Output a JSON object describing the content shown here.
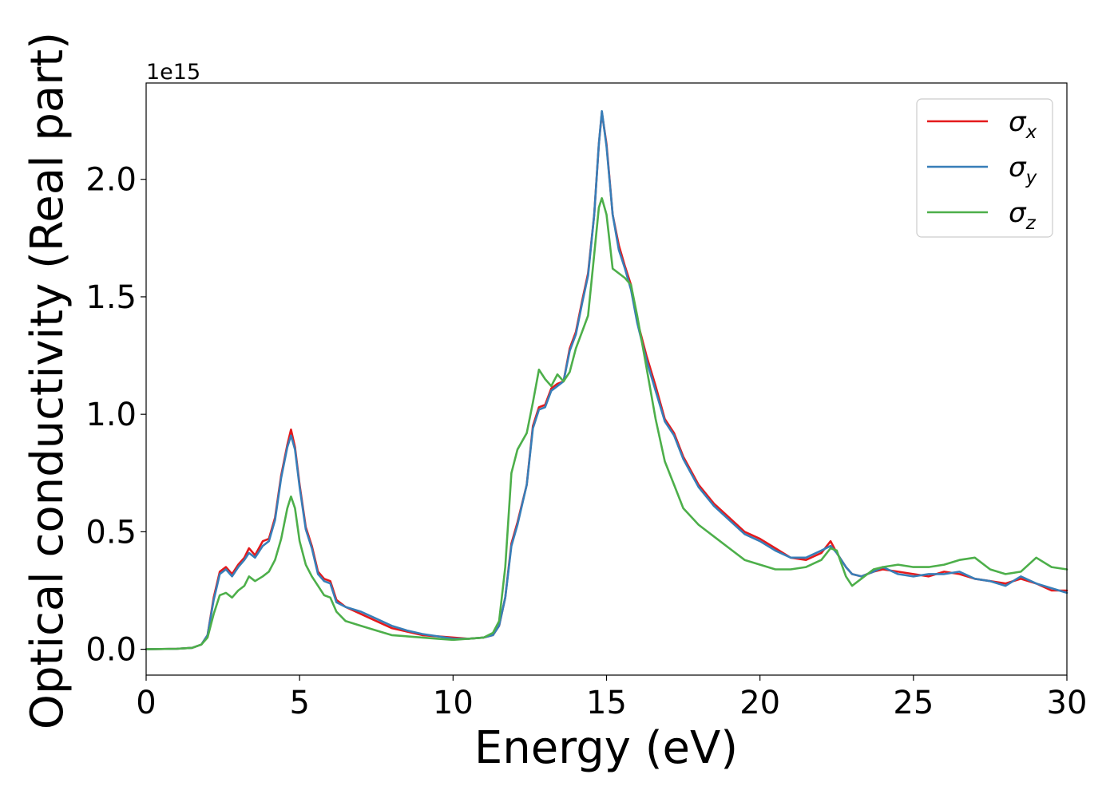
{
  "chart_data": {
    "type": "line",
    "title": "",
    "xlabel": "Energy (eV)",
    "ylabel": "Optical conductivity (Real part)",
    "y_offset_label": "1e15",
    "y_scale": 1000000000000000.0,
    "xlim": [
      0,
      30
    ],
    "ylim": [
      -0.11,
      2.41
    ],
    "xticks": [
      0,
      5,
      10,
      15,
      20,
      25,
      30
    ],
    "xtick_labels": [
      "0",
      "5",
      "10",
      "15",
      "20",
      "25",
      "30"
    ],
    "yticks": [
      0.0,
      0.5,
      1.0,
      1.5,
      2.0
    ],
    "ytick_labels": [
      "0.0",
      "0.5",
      "1.0",
      "1.5",
      "2.0"
    ],
    "grid": false,
    "legend_position": "top-right",
    "series": [
      {
        "name": "σx",
        "legend_symbol": "σ",
        "legend_subscript": "x",
        "color": "#e41a1c",
        "x": [
          0,
          1,
          1.5,
          1.8,
          2.0,
          2.2,
          2.4,
          2.6,
          2.8,
          3.0,
          3.2,
          3.35,
          3.55,
          3.8,
          4.0,
          4.2,
          4.4,
          4.6,
          4.72,
          4.85,
          5.0,
          5.2,
          5.4,
          5.6,
          5.8,
          6.0,
          6.2,
          6.5,
          7.0,
          7.5,
          8.0,
          8.5,
          9.0,
          9.5,
          10.0,
          10.5,
          11.0,
          11.3,
          11.5,
          11.7,
          11.9,
          12.1,
          12.4,
          12.6,
          12.8,
          13.0,
          13.2,
          13.4,
          13.6,
          13.8,
          14.0,
          14.2,
          14.4,
          14.6,
          14.75,
          14.85,
          15.0,
          15.2,
          15.4,
          15.6,
          15.8,
          16.0,
          16.3,
          16.6,
          16.9,
          17.2,
          17.5,
          18.0,
          18.5,
          19.0,
          19.5,
          20.0,
          20.5,
          21.0,
          21.5,
          22.0,
          22.3,
          22.5,
          22.8,
          23.0,
          23.3,
          23.7,
          24.0,
          24.5,
          25.0,
          25.5,
          26.0,
          26.5,
          27.0,
          27.5,
          28.0,
          28.5,
          29.0,
          29.5,
          30.0
        ],
        "values": [
          0,
          0.002,
          0.006,
          0.02,
          0.06,
          0.22,
          0.33,
          0.35,
          0.32,
          0.36,
          0.39,
          0.43,
          0.4,
          0.46,
          0.47,
          0.56,
          0.74,
          0.87,
          0.935,
          0.86,
          0.7,
          0.52,
          0.44,
          0.33,
          0.3,
          0.29,
          0.21,
          0.18,
          0.15,
          0.12,
          0.09,
          0.075,
          0.06,
          0.055,
          0.05,
          0.045,
          0.05,
          0.06,
          0.1,
          0.22,
          0.45,
          0.54,
          0.7,
          0.95,
          1.03,
          1.04,
          1.11,
          1.13,
          1.14,
          1.28,
          1.35,
          1.48,
          1.6,
          1.85,
          2.15,
          2.285,
          2.15,
          1.85,
          1.72,
          1.63,
          1.55,
          1.4,
          1.25,
          1.12,
          0.98,
          0.92,
          0.82,
          0.7,
          0.62,
          0.56,
          0.5,
          0.47,
          0.43,
          0.39,
          0.38,
          0.41,
          0.46,
          0.41,
          0.35,
          0.32,
          0.31,
          0.33,
          0.34,
          0.33,
          0.32,
          0.31,
          0.33,
          0.32,
          0.3,
          0.29,
          0.28,
          0.3,
          0.28,
          0.25,
          0.25
        ]
      },
      {
        "name": "σy",
        "legend_symbol": "σ",
        "legend_subscript": "y",
        "color": "#377eb8",
        "x": [
          0,
          1,
          1.5,
          1.8,
          2.0,
          2.2,
          2.4,
          2.6,
          2.8,
          3.0,
          3.2,
          3.35,
          3.55,
          3.8,
          4.0,
          4.2,
          4.4,
          4.6,
          4.72,
          4.85,
          5.0,
          5.2,
          5.4,
          5.6,
          5.8,
          6.0,
          6.2,
          6.5,
          7.0,
          7.5,
          8.0,
          8.5,
          9.0,
          9.5,
          10.0,
          10.5,
          11.0,
          11.3,
          11.5,
          11.7,
          11.9,
          12.1,
          12.4,
          12.6,
          12.8,
          13.0,
          13.2,
          13.4,
          13.6,
          13.8,
          14.0,
          14.2,
          14.4,
          14.6,
          14.75,
          14.85,
          15.0,
          15.2,
          15.4,
          15.6,
          15.8,
          16.0,
          16.3,
          16.6,
          16.9,
          17.2,
          17.5,
          18.0,
          18.5,
          19.0,
          19.5,
          20.0,
          20.5,
          21.0,
          21.5,
          22.0,
          22.3,
          22.5,
          22.8,
          23.0,
          23.3,
          23.7,
          24.0,
          24.5,
          25.0,
          25.5,
          26.0,
          26.5,
          27.0,
          27.5,
          28.0,
          28.5,
          29.0,
          29.5,
          30.0
        ],
        "values": [
          0,
          0.002,
          0.006,
          0.02,
          0.06,
          0.21,
          0.32,
          0.34,
          0.31,
          0.35,
          0.38,
          0.41,
          0.39,
          0.44,
          0.46,
          0.55,
          0.73,
          0.86,
          0.91,
          0.85,
          0.69,
          0.51,
          0.43,
          0.32,
          0.29,
          0.28,
          0.2,
          0.18,
          0.16,
          0.13,
          0.1,
          0.08,
          0.065,
          0.055,
          0.045,
          0.045,
          0.05,
          0.06,
          0.1,
          0.22,
          0.44,
          0.53,
          0.7,
          0.94,
          1.02,
          1.03,
          1.1,
          1.12,
          1.14,
          1.27,
          1.34,
          1.47,
          1.59,
          1.85,
          2.15,
          2.29,
          2.14,
          1.85,
          1.7,
          1.62,
          1.53,
          1.39,
          1.23,
          1.1,
          0.97,
          0.91,
          0.81,
          0.69,
          0.61,
          0.55,
          0.49,
          0.46,
          0.42,
          0.39,
          0.39,
          0.42,
          0.44,
          0.41,
          0.35,
          0.32,
          0.31,
          0.33,
          0.35,
          0.32,
          0.31,
          0.32,
          0.32,
          0.33,
          0.3,
          0.29,
          0.27,
          0.31,
          0.28,
          0.26,
          0.24
        ]
      },
      {
        "name": "σz",
        "legend_symbol": "σ",
        "legend_subscript": "z",
        "color": "#4daf4a",
        "x": [
          0,
          1,
          1.5,
          1.8,
          2.0,
          2.2,
          2.4,
          2.6,
          2.8,
          3.0,
          3.2,
          3.35,
          3.55,
          3.8,
          4.0,
          4.2,
          4.4,
          4.6,
          4.72,
          4.85,
          5.0,
          5.2,
          5.4,
          5.6,
          5.8,
          6.0,
          6.2,
          6.5,
          7.0,
          7.5,
          8.0,
          8.5,
          9.0,
          9.5,
          10.0,
          10.5,
          11.0,
          11.3,
          11.5,
          11.7,
          11.9,
          12.1,
          12.4,
          12.6,
          12.8,
          13.0,
          13.2,
          13.4,
          13.6,
          13.8,
          14.0,
          14.2,
          14.4,
          14.6,
          14.75,
          14.85,
          15.0,
          15.2,
          15.4,
          15.6,
          15.8,
          16.0,
          16.3,
          16.6,
          16.9,
          17.2,
          17.5,
          18.0,
          18.5,
          19.0,
          19.5,
          20.0,
          20.5,
          21.0,
          21.5,
          22.0,
          22.3,
          22.5,
          22.8,
          23.0,
          23.3,
          23.7,
          24.0,
          24.5,
          25.0,
          25.5,
          26.0,
          26.5,
          27.0,
          27.5,
          28.0,
          28.5,
          29.0,
          29.5,
          30.0
        ],
        "values": [
          0,
          0.002,
          0.006,
          0.02,
          0.05,
          0.15,
          0.23,
          0.24,
          0.22,
          0.25,
          0.27,
          0.31,
          0.29,
          0.31,
          0.33,
          0.38,
          0.47,
          0.6,
          0.65,
          0.6,
          0.46,
          0.36,
          0.31,
          0.27,
          0.23,
          0.22,
          0.16,
          0.12,
          0.1,
          0.08,
          0.06,
          0.055,
          0.05,
          0.045,
          0.04,
          0.045,
          0.05,
          0.07,
          0.12,
          0.35,
          0.75,
          0.85,
          0.92,
          1.05,
          1.19,
          1.15,
          1.12,
          1.17,
          1.14,
          1.18,
          1.28,
          1.35,
          1.42,
          1.68,
          1.88,
          1.92,
          1.85,
          1.62,
          1.6,
          1.58,
          1.55,
          1.42,
          1.2,
          0.98,
          0.8,
          0.7,
          0.6,
          0.53,
          0.48,
          0.43,
          0.38,
          0.36,
          0.34,
          0.34,
          0.35,
          0.38,
          0.43,
          0.42,
          0.31,
          0.27,
          0.3,
          0.34,
          0.35,
          0.36,
          0.35,
          0.35,
          0.36,
          0.38,
          0.39,
          0.34,
          0.32,
          0.33,
          0.39,
          0.35,
          0.34
        ]
      }
    ]
  }
}
